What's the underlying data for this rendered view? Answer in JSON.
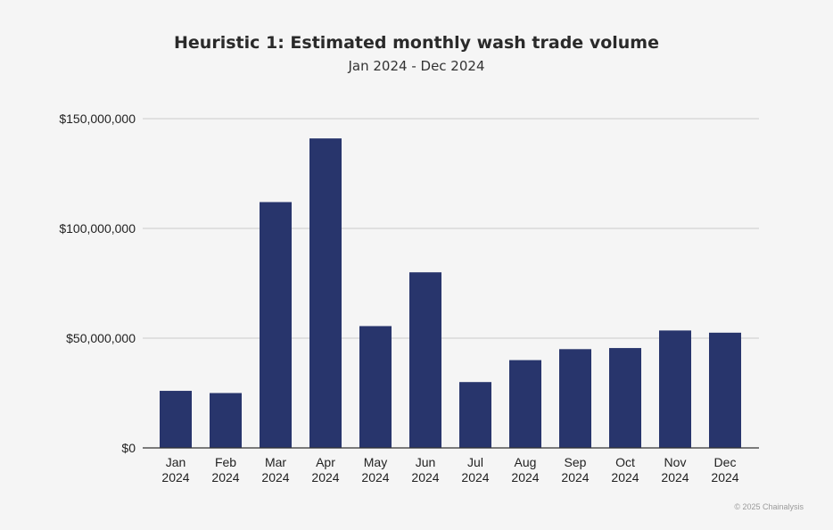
{
  "chart_data": {
    "type": "bar",
    "title": "Heuristic 1: Estimated monthly wash trade volume",
    "subtitle": "Jan 2024 - Dec 2024",
    "xlabel": "",
    "ylabel": "",
    "categories": [
      [
        "Jan",
        "2024"
      ],
      [
        "Feb",
        "2024"
      ],
      [
        "Mar",
        "2024"
      ],
      [
        "Apr",
        "2024"
      ],
      [
        "May",
        "2024"
      ],
      [
        "Jun",
        "2024"
      ],
      [
        "Jul",
        "2024"
      ],
      [
        "Aug",
        "2024"
      ],
      [
        "Sep",
        "2024"
      ],
      [
        "Oct",
        "2024"
      ],
      [
        "Nov",
        "2024"
      ],
      [
        "Dec",
        "2024"
      ]
    ],
    "values": [
      26000000,
      25000000,
      112000000,
      141000000,
      55500000,
      80000000,
      30000000,
      40000000,
      45000000,
      45500000,
      53500000,
      52500000
    ],
    "ylim": [
      0,
      150000000
    ],
    "yticks": [
      0,
      50000000,
      100000000,
      150000000
    ],
    "ytick_labels": [
      "$0",
      "$50,000,000",
      "$100,000,000",
      "$150,000,000"
    ],
    "grid": true,
    "legend": "none",
    "bar_color": "#28356c",
    "grid_color": "#cccccc",
    "axis_color": "#333333"
  },
  "footer": "© 2025 Chainalysis"
}
